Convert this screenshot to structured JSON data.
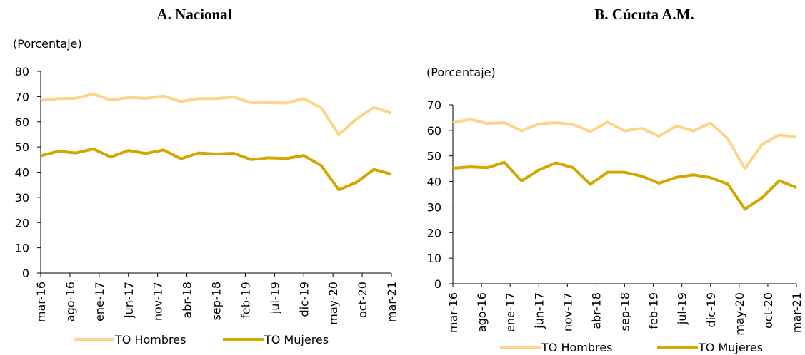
{
  "chart_data": [
    {
      "type": "line",
      "title": "A.   Nacional",
      "y_label": "(Porcentaje)",
      "x": [
        "2016-03",
        "2016-06",
        "2016-09",
        "2016-12",
        "2017-03",
        "2017-06",
        "2017-09",
        "2017-12",
        "2018-03",
        "2018-06",
        "2018-09",
        "2018-12",
        "2019-03",
        "2019-06",
        "2019-09",
        "2019-12",
        "2020-03",
        "2020-06",
        "2020-09",
        "2020-12",
        "2021-03"
      ],
      "xticks": [
        {
          "value": "2016-03",
          "label": "mar-16"
        },
        {
          "value": "2016-08",
          "label": "ago-16"
        },
        {
          "value": "2017-01",
          "label": "ene-17"
        },
        {
          "value": "2017-06",
          "label": "jun-17"
        },
        {
          "value": "2017-11",
          "label": "nov-17"
        },
        {
          "value": "2018-04",
          "label": "abr-18"
        },
        {
          "value": "2018-09",
          "label": "sep-18"
        },
        {
          "value": "2019-02",
          "label": "feb-19"
        },
        {
          "value": "2019-07",
          "label": "jul-19"
        },
        {
          "value": "2019-12",
          "label": "dic-19"
        },
        {
          "value": "2020-05",
          "label": "may-20"
        },
        {
          "value": "2020-10",
          "label": "oct-20"
        },
        {
          "value": "2021-03",
          "label": "mar-21"
        }
      ],
      "ylim": [
        0,
        80
      ],
      "yticks": [
        0,
        10,
        20,
        30,
        40,
        50,
        60,
        70,
        80
      ],
      "series": [
        {
          "name": "TO Hombres",
          "color": "#fcd48a",
          "values": [
            68.5,
            69.2,
            69.3,
            71,
            68.6,
            69.6,
            69.3,
            70.2,
            68,
            69.2,
            69.2,
            69.8,
            67.5,
            67.6,
            67.4,
            69.2,
            65.5,
            54.8,
            61,
            65.7,
            63.4
          ]
        },
        {
          "name": "TO Mujeres",
          "color": "#d4a600",
          "values": [
            46.5,
            48.3,
            47.6,
            49.2,
            46,
            48.6,
            47.4,
            48.8,
            45.3,
            47.6,
            47.2,
            47.5,
            45,
            45.7,
            45.4,
            46.6,
            42.6,
            33,
            35.9,
            41.1,
            39.2
          ]
        }
      ]
    },
    {
      "type": "line",
      "title": "B. Cúcuta A.M.",
      "y_label": "(Porcentaje)",
      "x": [
        "2016-03",
        "2016-06",
        "2016-09",
        "2016-12",
        "2017-03",
        "2017-06",
        "2017-09",
        "2017-12",
        "2018-03",
        "2018-06",
        "2018-09",
        "2018-12",
        "2019-03",
        "2019-06",
        "2019-09",
        "2019-12",
        "2020-03",
        "2020-06",
        "2020-09",
        "2020-12",
        "2021-03"
      ],
      "xticks": [
        {
          "value": "2016-03",
          "label": "mar-16"
        },
        {
          "value": "2016-08",
          "label": "ago-16"
        },
        {
          "value": "2017-01",
          "label": "ene-17"
        },
        {
          "value": "2017-06",
          "label": "jun-17"
        },
        {
          "value": "2017-11",
          "label": "nov-17"
        },
        {
          "value": "2018-04",
          "label": "abr-18"
        },
        {
          "value": "2018-09",
          "label": "sep-18"
        },
        {
          "value": "2019-02",
          "label": "feb-19"
        },
        {
          "value": "2019-07",
          "label": "jul-19"
        },
        {
          "value": "2019-12",
          "label": "dic-19"
        },
        {
          "value": "2020-05",
          "label": "may-20"
        },
        {
          "value": "2020-10",
          "label": "oct-20"
        },
        {
          "value": "2021-03",
          "label": "mar-21"
        }
      ],
      "ylim": [
        0,
        70
      ],
      "yticks": [
        0,
        10,
        20,
        30,
        40,
        50,
        60,
        70
      ],
      "series": [
        {
          "name": "TO Hombres",
          "color": "#fcd48a",
          "values": [
            63,
            64.3,
            62.7,
            63,
            59.8,
            62.5,
            63,
            62.3,
            59.5,
            63.2,
            59.8,
            60.8,
            57.7,
            61.7,
            59.8,
            62.8,
            56.8,
            45,
            54.5,
            58.2,
            57.3
          ]
        },
        {
          "name": "TO Mujeres",
          "color": "#d4a600",
          "values": [
            45.2,
            45.7,
            45.4,
            47.5,
            40.2,
            44.5,
            47.3,
            45.4,
            38.9,
            43.6,
            43.6,
            42.1,
            39.3,
            41.6,
            42.6,
            41.5,
            39,
            29.2,
            33.6,
            40.3,
            37.6
          ]
        }
      ]
    }
  ]
}
